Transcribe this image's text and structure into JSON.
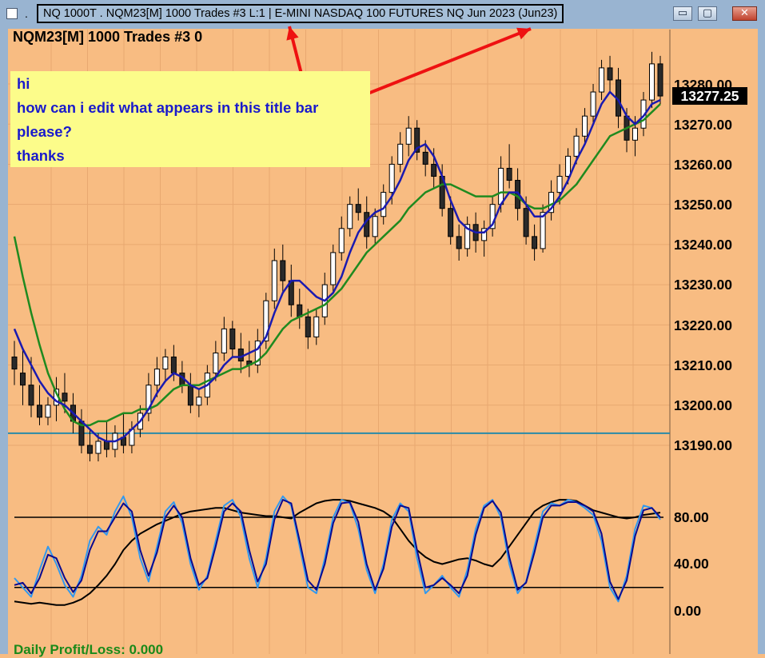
{
  "window": {
    "title": "NQ 1000T   . NQM23[M]  1000 Trades  #3 L:1 | E-MINI NASDAQ 100 FUTURES NQ Jun 2023 (Jun23)",
    "title_dot": ".",
    "buttons": {
      "minimize": "▭",
      "maximize": "▢",
      "close": "✕"
    }
  },
  "chart": {
    "header": "NQM23[M]  1000 Trades  #3 0",
    "price_labels": [
      "13280.00",
      "13270.00",
      "13260.00",
      "13250.00",
      "13240.00",
      "13230.00",
      "13220.00",
      "13210.00",
      "13200.00",
      "13190.00"
    ],
    "last_price": "13277.25",
    "oscillator_labels": [
      "80.00",
      "40.00",
      "0.00"
    ],
    "footer": "Daily Profit/Loss: 0.000"
  },
  "note": {
    "lines": [
      "hi",
      "how can i edit what appears in this title bar",
      "please?",
      "thanks"
    ]
  },
  "colors": {
    "background": "#f8bc82",
    "titlebar": "#99b4d1",
    "note_bg": "#fcfc8a",
    "note_text": "#1a1acc",
    "ma_fast": "#1a1ab0",
    "ma_slow": "#1f8a1f",
    "stoch_fast": "#3399ee",
    "stoch_slow": "#0a0a90",
    "arrow": "#ee1111",
    "hline": "#2a8aa8"
  },
  "chart_data": {
    "type": "candlestick",
    "instrument": "NQM23[M]",
    "price_ylim": [
      13185,
      13292
    ],
    "oscillator_ylim": [
      0,
      100
    ],
    "oscillator_levels": [
      80,
      20
    ],
    "horizontal_line": 13193,
    "last": 13277.25,
    "bars": [
      {
        "o": 13212,
        "h": 13216,
        "l": 13205,
        "c": 13209
      },
      {
        "o": 13208,
        "h": 13214,
        "l": 13200,
        "c": 13205
      },
      {
        "o": 13205,
        "h": 13212,
        "l": 13197,
        "c": 13200
      },
      {
        "o": 13200,
        "h": 13205,
        "l": 13195,
        "c": 13197
      },
      {
        "o": 13197,
        "h": 13202,
        "l": 13195,
        "c": 13200
      },
      {
        "o": 13200,
        "h": 13207,
        "l": 13196,
        "c": 13204
      },
      {
        "o": 13203,
        "h": 13208,
        "l": 13198,
        "c": 13201
      },
      {
        "o": 13200,
        "h": 13203,
        "l": 13193,
        "c": 13196
      },
      {
        "o": 13196,
        "h": 13199,
        "l": 13188,
        "c": 13190
      },
      {
        "o": 13190,
        "h": 13194,
        "l": 13186,
        "c": 13188
      },
      {
        "o": 13188,
        "h": 13193,
        "l": 13186,
        "c": 13191
      },
      {
        "o": 13191,
        "h": 13196,
        "l": 13187,
        "c": 13189
      },
      {
        "o": 13189,
        "h": 13195,
        "l": 13187,
        "c": 13193
      },
      {
        "o": 13192,
        "h": 13198,
        "l": 13188,
        "c": 13190
      },
      {
        "o": 13190,
        "h": 13196,
        "l": 13188,
        "c": 13194
      },
      {
        "o": 13194,
        "h": 13200,
        "l": 13192,
        "c": 13198
      },
      {
        "o": 13198,
        "h": 13208,
        "l": 13196,
        "c": 13205
      },
      {
        "o": 13205,
        "h": 13212,
        "l": 13202,
        "c": 13209
      },
      {
        "o": 13209,
        "h": 13214,
        "l": 13206,
        "c": 13212
      },
      {
        "o": 13212,
        "h": 13215,
        "l": 13206,
        "c": 13208
      },
      {
        "o": 13208,
        "h": 13211,
        "l": 13203,
        "c": 13205
      },
      {
        "o": 13205,
        "h": 13208,
        "l": 13198,
        "c": 13200
      },
      {
        "o": 13200,
        "h": 13204,
        "l": 13197,
        "c": 13202
      },
      {
        "o": 13202,
        "h": 13210,
        "l": 13200,
        "c": 13208
      },
      {
        "o": 13208,
        "h": 13216,
        "l": 13206,
        "c": 13213
      },
      {
        "o": 13213,
        "h": 13222,
        "l": 13211,
        "c": 13219
      },
      {
        "o": 13219,
        "h": 13221,
        "l": 13212,
        "c": 13214
      },
      {
        "o": 13214,
        "h": 13218,
        "l": 13208,
        "c": 13211
      },
      {
        "o": 13211,
        "h": 13216,
        "l": 13207,
        "c": 13210
      },
      {
        "o": 13210,
        "h": 13219,
        "l": 13208,
        "c": 13216
      },
      {
        "o": 13216,
        "h": 13228,
        "l": 13214,
        "c": 13226
      },
      {
        "o": 13226,
        "h": 13239,
        "l": 13224,
        "c": 13236
      },
      {
        "o": 13236,
        "h": 13240,
        "l": 13228,
        "c": 13231
      },
      {
        "o": 13231,
        "h": 13235,
        "l": 13222,
        "c": 13225
      },
      {
        "o": 13225,
        "h": 13229,
        "l": 13219,
        "c": 13222
      },
      {
        "o": 13222,
        "h": 13224,
        "l": 13214,
        "c": 13217
      },
      {
        "o": 13217,
        "h": 13224,
        "l": 13215,
        "c": 13222
      },
      {
        "o": 13222,
        "h": 13233,
        "l": 13220,
        "c": 13230
      },
      {
        "o": 13230,
        "h": 13240,
        "l": 13228,
        "c": 13238
      },
      {
        "o": 13238,
        "h": 13247,
        "l": 13236,
        "c": 13244
      },
      {
        "o": 13244,
        "h": 13252,
        "l": 13242,
        "c": 13250
      },
      {
        "o": 13250,
        "h": 13254,
        "l": 13246,
        "c": 13248
      },
      {
        "o": 13248,
        "h": 13252,
        "l": 13239,
        "c": 13242
      },
      {
        "o": 13242,
        "h": 13249,
        "l": 13240,
        "c": 13247
      },
      {
        "o": 13247,
        "h": 13255,
        "l": 13245,
        "c": 13253
      },
      {
        "o": 13253,
        "h": 13262,
        "l": 13250,
        "c": 13260
      },
      {
        "o": 13260,
        "h": 13268,
        "l": 13258,
        "c": 13265
      },
      {
        "o": 13265,
        "h": 13272,
        "l": 13262,
        "c": 13269
      },
      {
        "o": 13269,
        "h": 13271,
        "l": 13261,
        "c": 13263
      },
      {
        "o": 13263,
        "h": 13266,
        "l": 13257,
        "c": 13260
      },
      {
        "o": 13260,
        "h": 13264,
        "l": 13254,
        "c": 13257
      },
      {
        "o": 13257,
        "h": 13260,
        "l": 13247,
        "c": 13249
      },
      {
        "o": 13249,
        "h": 13252,
        "l": 13240,
        "c": 13242
      },
      {
        "o": 13242,
        "h": 13245,
        "l": 13236,
        "c": 13239
      },
      {
        "o": 13239,
        "h": 13247,
        "l": 13237,
        "c": 13245
      },
      {
        "o": 13245,
        "h": 13248,
        "l": 13238,
        "c": 13241
      },
      {
        "o": 13241,
        "h": 13246,
        "l": 13237,
        "c": 13244
      },
      {
        "o": 13244,
        "h": 13252,
        "l": 13242,
        "c": 13250
      },
      {
        "o": 13250,
        "h": 13262,
        "l": 13248,
        "c": 13259
      },
      {
        "o": 13259,
        "h": 13265,
        "l": 13254,
        "c": 13256
      },
      {
        "o": 13256,
        "h": 13259,
        "l": 13246,
        "c": 13249
      },
      {
        "o": 13249,
        "h": 13252,
        "l": 13240,
        "c": 13242
      },
      {
        "o": 13242,
        "h": 13245,
        "l": 13236,
        "c": 13239
      },
      {
        "o": 13239,
        "h": 13250,
        "l": 13238,
        "c": 13248
      },
      {
        "o": 13248,
        "h": 13256,
        "l": 13246,
        "c": 13253
      },
      {
        "o": 13253,
        "h": 13260,
        "l": 13250,
        "c": 13257
      },
      {
        "o": 13257,
        "h": 13264,
        "l": 13255,
        "c": 13262
      },
      {
        "o": 13262,
        "h": 13269,
        "l": 13260,
        "c": 13267
      },
      {
        "o": 13267,
        "h": 13274,
        "l": 13265,
        "c": 13272
      },
      {
        "o": 13272,
        "h": 13280,
        "l": 13270,
        "c": 13278
      },
      {
        "o": 13278,
        "h": 13286,
        "l": 13276,
        "c": 13284
      },
      {
        "o": 13284,
        "h": 13287,
        "l": 13278,
        "c": 13281
      },
      {
        "o": 13281,
        "h": 13284,
        "l": 13269,
        "c": 13272
      },
      {
        "o": 13272,
        "h": 13274,
        "l": 13263,
        "c": 13266
      },
      {
        "o": 13266,
        "h": 13272,
        "l": 13262,
        "c": 13269
      },
      {
        "o": 13269,
        "h": 13278,
        "l": 13267,
        "c": 13276
      },
      {
        "o": 13276,
        "h": 13288,
        "l": 13274,
        "c": 13285
      },
      {
        "o": 13285,
        "h": 13287,
        "l": 13275,
        "c": 13277
      }
    ],
    "ma_fast": [
      13219,
      13214,
      13210,
      13206,
      13203,
      13201,
      13200,
      13198,
      13196,
      13194,
      13192,
      13191,
      13191,
      13192,
      13194,
      13196,
      13199,
      13203,
      13206,
      13208,
      13207,
      13205,
      13204,
      13205,
      13207,
      13210,
      13212,
      13212,
      13213,
      13214,
      13217,
      13223,
      13228,
      13231,
      13231,
      13229,
      13227,
      13226,
      13228,
      13232,
      13238,
      13243,
      13246,
      13248,
      13249,
      13252,
      13256,
      13261,
      13264,
      13265,
      13262,
      13257,
      13251,
      13246,
      13244,
      13243,
      13243,
      13245,
      13250,
      13253,
      13253,
      13250,
      13247,
      13247,
      13249,
      13252,
      13256,
      13261,
      13265,
      13270,
      13275,
      13278,
      13276,
      13272,
      13270,
      13272,
      13275,
      13276
    ],
    "ma_slow": [
      13242,
      13232,
      13223,
      13215,
      13208,
      13203,
      13199,
      13196,
      13195,
      13195,
      13196,
      13196,
      13197,
      13198,
      13198,
      13199,
      13199,
      13200,
      13202,
      13204,
      13205,
      13205,
      13205,
      13206,
      13207,
      13208,
      13209,
      13209,
      13210,
      13211,
      13213,
      13216,
      13219,
      13221,
      13222,
      13223,
      13224,
      13225,
      13227,
      13229,
      13232,
      13235,
      13238,
      13240,
      13242,
      13244,
      13246,
      13249,
      13251,
      13253,
      13254,
      13255,
      13255,
      13254,
      13253,
      13252,
      13252,
      13252,
      13253,
      13253,
      13252,
      13250,
      13249,
      13249,
      13250,
      13251,
      13253,
      13255,
      13258,
      13261,
      13264,
      13267,
      13268,
      13269,
      13270,
      13271,
      13273,
      13275
    ],
    "stoch_fast": [
      28,
      20,
      12,
      35,
      55,
      40,
      22,
      12,
      30,
      60,
      72,
      65,
      85,
      98,
      80,
      45,
      25,
      55,
      85,
      93,
      75,
      40,
      18,
      30,
      60,
      90,
      95,
      80,
      45,
      20,
      45,
      85,
      98,
      90,
      55,
      20,
      15,
      45,
      80,
      95,
      92,
      70,
      35,
      15,
      40,
      78,
      92,
      85,
      45,
      15,
      22,
      30,
      20,
      12,
      35,
      70,
      90,
      95,
      80,
      40,
      15,
      25,
      55,
      85,
      92,
      90,
      95,
      93,
      88,
      82,
      60,
      20,
      8,
      30,
      70,
      90,
      88,
      78
    ],
    "stoch_slow": [
      22,
      24,
      15,
      28,
      48,
      45,
      28,
      16,
      26,
      52,
      68,
      68,
      80,
      92,
      85,
      52,
      30,
      50,
      80,
      90,
      80,
      45,
      22,
      28,
      55,
      85,
      92,
      85,
      52,
      25,
      40,
      78,
      95,
      92,
      60,
      26,
      18,
      40,
      75,
      92,
      93,
      76,
      40,
      18,
      36,
      72,
      90,
      88,
      52,
      20,
      22,
      28,
      22,
      15,
      30,
      65,
      88,
      94,
      84,
      46,
      18,
      24,
      50,
      80,
      90,
      90,
      93,
      93,
      90,
      85,
      66,
      25,
      10,
      26,
      64,
      86,
      88,
      80
    ],
    "stoch_black": [
      8,
      7,
      6,
      7,
      6,
      5,
      5,
      7,
      10,
      15,
      22,
      30,
      40,
      52,
      60,
      66,
      70,
      74,
      77,
      80,
      83,
      85,
      86,
      87,
      88,
      88,
      86,
      84,
      83,
      82,
      81,
      81,
      80,
      79,
      84,
      88,
      92,
      94,
      95,
      95,
      94,
      92,
      90,
      88,
      85,
      80,
      70,
      60,
      52,
      46,
      42,
      40,
      42,
      44,
      45,
      43,
      40,
      38,
      45,
      55,
      65,
      75,
      85,
      90,
      93,
      95,
      95,
      94,
      90,
      86,
      84,
      82,
      80,
      79,
      80,
      82,
      83,
      84
    ]
  }
}
